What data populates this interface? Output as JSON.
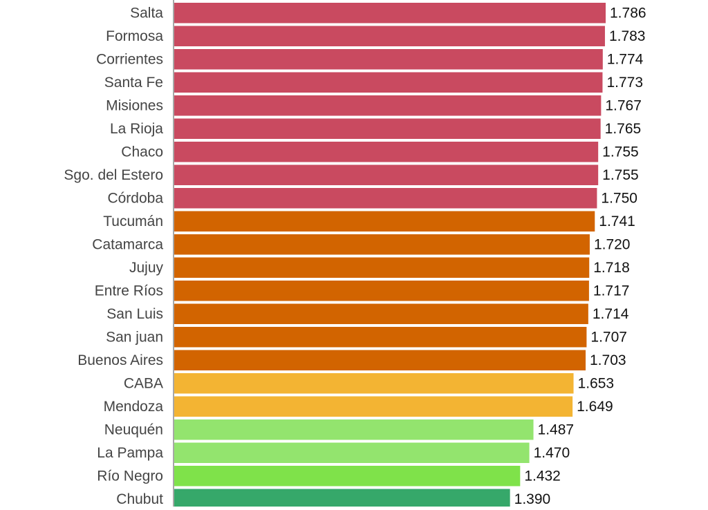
{
  "chart_data": {
    "type": "bar",
    "orientation": "horizontal",
    "title": "",
    "xlabel": "",
    "ylabel": "",
    "grid": false,
    "legend": "none",
    "categories": [
      "Salta",
      "Formosa",
      "Corrientes",
      "Santa Fe",
      "Misiones",
      "La Rioja",
      "Chaco",
      "Sgo. del Estero",
      "Córdoba",
      "Tucumán",
      "Catamarca",
      "Jujuy",
      "Entre Ríos",
      "San Luis",
      "San juan",
      "Buenos Aires",
      "CABA",
      "Mendoza",
      "Neuquén",
      "La Pampa",
      "Río Negro",
      "Chubut"
    ],
    "values": [
      1786,
      1783,
      1774,
      1773,
      1767,
      1765,
      1755,
      1755,
      1750,
      1741,
      1720,
      1718,
      1717,
      1714,
      1707,
      1703,
      1653,
      1649,
      1487,
      1470,
      1432,
      1390
    ],
    "value_labels": [
      "1.786",
      "1.783",
      "1.774",
      "1.773",
      "1.767",
      "1.765",
      "1.755",
      "1.755",
      "1.750",
      "1.741",
      "1.720",
      "1.718",
      "1.717",
      "1.714",
      "1.707",
      "1.703",
      "1.653",
      "1.649",
      "1.487",
      "1.470",
      "1.432",
      "1.390"
    ],
    "bar_colors": [
      "#c94a60",
      "#c94a60",
      "#c94a60",
      "#c94a60",
      "#c94a60",
      "#c94a60",
      "#c94a60",
      "#c94a60",
      "#c94a60",
      "#d26400",
      "#d26400",
      "#d26400",
      "#d26400",
      "#d26400",
      "#d26400",
      "#d26400",
      "#f3b433",
      "#f3b433",
      "#93e46e",
      "#93e46e",
      "#7fe24a",
      "#36a86a"
    ],
    "xlim": [
      0,
      1786
    ]
  }
}
